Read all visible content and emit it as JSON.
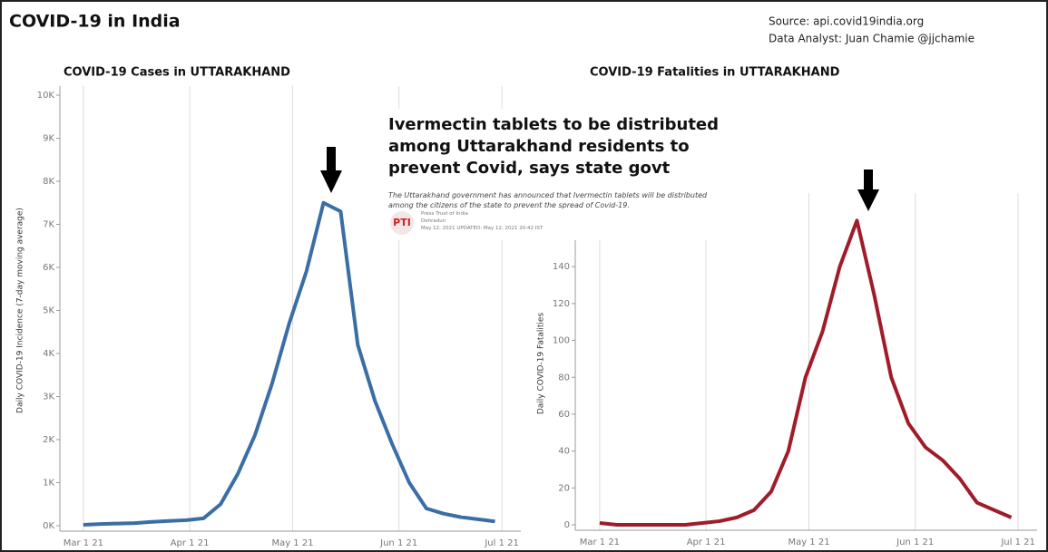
{
  "header": {
    "title": "COVID-19 in India",
    "source": "Source: api.covid19india.org",
    "analyst": "Data Analyst:  Juan Chamie @jjchamie"
  },
  "news": {
    "headline": "Ivermectin tablets to be distributed among Uttarakhand residents to prevent Covid, says state govt",
    "summary": "The Uttarakhand government has announced that Ivermectin tablets will be distributed among the citizens of the state to prevent the spread of Covid-19.",
    "logo": "PTI",
    "agency": "Press Trust of India",
    "place": "Dehradun",
    "date": "May 12, 2021 UPDATED: May 12, 2021 20:42 IST"
  },
  "chart_data": [
    {
      "type": "line",
      "title": "COVID-19 Cases in UTTARAKHAND",
      "y_label": "Daily COVID-19 Incidence (7-day moving average)",
      "color": "#3a6ea5",
      "x": [
        "2021-03-01",
        "2021-03-06",
        "2021-03-11",
        "2021-03-16",
        "2021-03-21",
        "2021-03-26",
        "2021-03-31",
        "2021-04-05",
        "2021-04-10",
        "2021-04-15",
        "2021-04-20",
        "2021-04-25",
        "2021-04-30",
        "2021-05-05",
        "2021-05-10",
        "2021-05-15",
        "2021-05-20",
        "2021-05-25",
        "2021-05-30",
        "2021-06-04",
        "2021-06-09",
        "2021-06-14",
        "2021-06-19",
        "2021-06-24",
        "2021-06-29"
      ],
      "values": [
        20,
        40,
        50,
        60,
        90,
        110,
        130,
        170,
        500,
        1200,
        2100,
        3300,
        4700,
        5900,
        7500,
        7300,
        4200,
        2900,
        1900,
        1000,
        400,
        280,
        200,
        150,
        100
      ],
      "xlim": [
        "2021-02-24",
        "2021-07-06"
      ],
      "xticks": [
        {
          "value": "2021-03-01",
          "label": "Mar 1 21"
        },
        {
          "value": "2021-04-01",
          "label": "Apr 1 21"
        },
        {
          "value": "2021-05-01",
          "label": "May 1 21"
        },
        {
          "value": "2021-06-01",
          "label": "Jun 1 21"
        },
        {
          "value": "2021-07-01",
          "label": "Jul 1 21"
        }
      ],
      "ylim": [
        0,
        10000
      ],
      "yticks": [
        {
          "value": 0,
          "label": "0K"
        },
        {
          "value": 1000,
          "label": "1K"
        },
        {
          "value": 2000,
          "label": "2K"
        },
        {
          "value": 3000,
          "label": "3K"
        },
        {
          "value": 4000,
          "label": "4K"
        },
        {
          "value": 5000,
          "label": "5K"
        },
        {
          "value": 6000,
          "label": "6K"
        },
        {
          "value": 7000,
          "label": "7K"
        },
        {
          "value": 8000,
          "label": "8K"
        },
        {
          "value": 9000,
          "label": "9K"
        },
        {
          "value": 10000,
          "label": "10K"
        }
      ],
      "grid": true
    },
    {
      "type": "line",
      "title": "COVID-19 Fatalities in UTTARAKHAND",
      "y_label": "Daily COVID-19 Fatalities",
      "color": "#a01c2a",
      "x": [
        "2021-03-01",
        "2021-03-06",
        "2021-03-11",
        "2021-03-16",
        "2021-03-21",
        "2021-03-26",
        "2021-03-31",
        "2021-04-05",
        "2021-04-10",
        "2021-04-15",
        "2021-04-20",
        "2021-04-25",
        "2021-04-30",
        "2021-05-05",
        "2021-05-10",
        "2021-05-15",
        "2021-05-20",
        "2021-05-25",
        "2021-05-30",
        "2021-06-04",
        "2021-06-09",
        "2021-06-14",
        "2021-06-19",
        "2021-06-24",
        "2021-06-29"
      ],
      "values": [
        1,
        0,
        0,
        0,
        0,
        0,
        1,
        2,
        4,
        8,
        18,
        40,
        80,
        105,
        140,
        165,
        125,
        80,
        55,
        42,
        35,
        25,
        12,
        8,
        4
      ],
      "xlim": [
        "2021-02-24",
        "2021-07-06"
      ],
      "xticks": [
        {
          "value": "2021-03-01",
          "label": "Mar 1 21"
        },
        {
          "value": "2021-04-01",
          "label": "Apr 1 21"
        },
        {
          "value": "2021-05-01",
          "label": "May 1 21"
        },
        {
          "value": "2021-06-01",
          "label": "Jun 1 21"
        },
        {
          "value": "2021-07-01",
          "label": "Jul 1 21"
        }
      ],
      "ylim": [
        0,
        175
      ],
      "yticks": [
        0,
        20,
        40,
        60,
        80,
        100,
        120,
        140
      ],
      "grid": true
    }
  ]
}
